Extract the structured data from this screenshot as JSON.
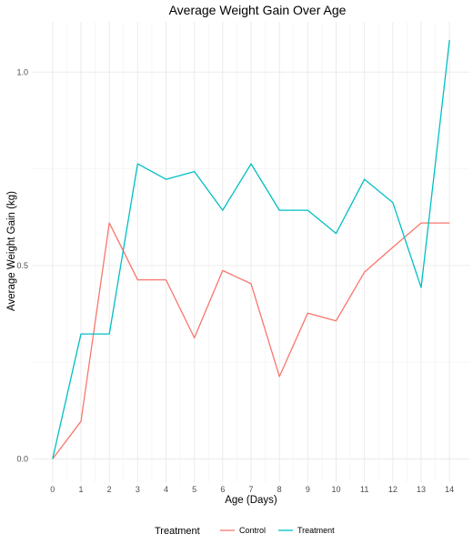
{
  "chart_data": {
    "type": "line",
    "title": "Average Weight Gain Over Age",
    "xlabel": "Age (Days)",
    "ylabel": "Average Weight Gain (kg)",
    "x": [
      0,
      1,
      2,
      3,
      4,
      5,
      6,
      7,
      8,
      9,
      10,
      11,
      12,
      13,
      14
    ],
    "x_ticks": [
      "0",
      "1",
      "2",
      "3",
      "4",
      "5",
      "6",
      "7",
      "8",
      "9",
      "10",
      "11",
      "12",
      "13",
      "14"
    ],
    "y_ticks": [
      "0.0",
      "0.5",
      "1.0"
    ],
    "y_tick_values": [
      0,
      0.5,
      1.0
    ],
    "xlim": [
      -0.7,
      14.7
    ],
    "ylim": [
      -0.06,
      1.13
    ],
    "grid": true,
    "legend_title": "Treatment",
    "legend_position": "bottom",
    "series": [
      {
        "name": "Control",
        "color": "#F8766D",
        "values": [
          0.0,
          0.097,
          0.61,
          0.463,
          0.463,
          0.313,
          0.487,
          0.453,
          0.213,
          0.377,
          0.357,
          0.483,
          0.547,
          0.61,
          0.61
        ]
      },
      {
        "name": "Treatment",
        "color": "#00BFC4",
        "values": [
          0.0,
          0.323,
          0.323,
          0.763,
          0.723,
          0.743,
          0.643,
          0.763,
          0.643,
          0.643,
          0.583,
          0.723,
          0.663,
          0.443,
          1.083
        ]
      }
    ]
  }
}
